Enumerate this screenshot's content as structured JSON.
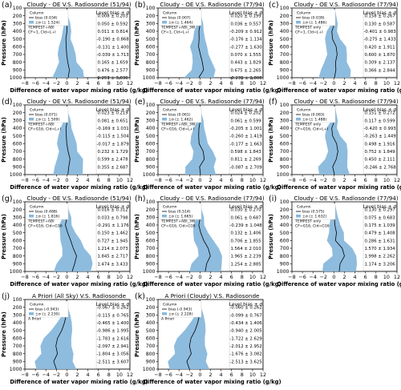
{
  "figure": {
    "common": {
      "ylabel": "Pressure (hPa)",
      "xlabel": "Difference of water vapor mixing ratio (g/kg)",
      "xticks": [
        -8,
        -6,
        -4,
        -2,
        0,
        2,
        4,
        6,
        8,
        10,
        12
      ],
      "yticks": [
        100,
        200,
        300,
        400,
        500,
        600,
        700,
        800,
        900,
        1000
      ],
      "xlim": [
        -8,
        12
      ],
      "ylim": [
        1000,
        100
      ],
      "legend_title": "Column",
      "table_header": "Level bias ± σ",
      "colors": {
        "fill": "#88b8dc",
        "line": "#000000"
      }
    }
  },
  "chart_data": [
    {
      "panel": "(a)",
      "type": "area",
      "title": "Cloudy - OE V.S. Radiosonde (51/94)",
      "legend": {
        "bias": "bias (0.034)",
        "sigma": "±σ (± 1.524)"
      },
      "annotation": [
        "TEMPEST+ABI",
        "CF=1, Cld=L+I"
      ],
      "pressure": [
        100,
        200,
        300,
        400,
        500,
        600,
        700,
        800,
        900,
        1000
      ],
      "bias": [
        0.006,
        0.008,
        0.05,
        0.011,
        -0.19,
        -0.131,
        -0.039,
        0.165,
        0.476,
        0.257
      ],
      "sigma": [
        0.05,
        0.203,
        0.592,
        0.814,
        0.868,
        1.4,
        1.713,
        1.659,
        2.577,
        3.036
      ],
      "table": [
        "0.008 ± 0.203",
        "0.050 ± 0.592",
        "0.011 ± 0.814",
        "-0.190 ± 0.868",
        "-0.131 ± 1.400",
        "-0.039 ± 1.713",
        "0.165 ± 1.659",
        "0.476 ± 2.577",
        "0.257 ± 3.036"
      ]
    },
    {
      "panel": "(b)",
      "type": "area",
      "title": "Cloudy - OE V.S. Radiosonde (77/94)",
      "legend": {
        "bias": "bias (0.007)",
        "sigma": "±σ (± 1.464)"
      },
      "annotation": [
        "TEMPEST+ABI_3W",
        "CF=1, Cld=L+I"
      ],
      "pressure": [
        100,
        200,
        300,
        400,
        500,
        600,
        700,
        800,
        900,
        1000
      ],
      "bias": [
        0.01,
        0.02,
        0.036,
        -0.209,
        -0.176,
        -0.277,
        0.07,
        0.443,
        0.675,
        -0.235
      ],
      "sigma": [
        0.05,
        0.199,
        0.557,
        0.912,
        1.134,
        1.63,
        1.555,
        1.829,
        2.265,
        2.808
      ],
      "table": [
        "0.020 ± 0.199",
        "0.036 ± 0.557",
        "-0.209 ± 0.912",
        "-0.176 ± 1.134",
        "-0.277 ± 1.630",
        "0.070 ± 1.555",
        "0.443 ± 1.829",
        "0.675 ± 2.265",
        "-0.235 ± 2.808"
      ]
    },
    {
      "panel": "(c)",
      "type": "area",
      "title": "Cloudy - OE V.S. Radiosonde (77/94)",
      "legend": {
        "bias": "bias (0.039)",
        "sigma": "±σ (± 1.486)"
      },
      "annotation": [
        "TEMPEST only",
        "CF=1, Cld=L+I"
      ],
      "pressure": [
        100,
        200,
        300,
        400,
        500,
        600,
        700,
        800,
        900,
        1000
      ],
      "bias": [
        0.1,
        0.158,
        0.13,
        -0.401,
        -0.275,
        0.42,
        0.6,
        0.309,
        0.366,
        0.1
      ],
      "sigma": [
        0.08,
        0.267,
        0.587,
        0.983,
        1.433,
        1.911,
        1.87,
        2.137,
        2.844,
        3.0
      ],
      "table": [
        "0.158 ± 0.267",
        "0.130 ± 0.587",
        "-0.401 ± 0.983",
        "-0.275 ± 1.433",
        "0.420 ± 1.911",
        "0.600 ± 1.870",
        "0.309 ± 2.137",
        "0.366 ± 2.844"
      ]
    },
    {
      "panel": "(d)",
      "type": "area",
      "title": "Cloudy - OE V.S. Radiosonde (51/94)",
      "legend": {
        "bias": "bias (0.071)",
        "sigma": "±σ (± 1.509)"
      },
      "annotation": [
        "TEMPEST+ABI",
        "CF=G16, Cld=L+I"
      ],
      "pressure": [
        100,
        200,
        300,
        400,
        500,
        600,
        700,
        800,
        900,
        1000
      ],
      "bias": [
        0.01,
        0.023,
        0.081,
        -0.169,
        -0.115,
        -0.017,
        0.232,
        0.599,
        0.355,
        0.2
      ],
      "sigma": [
        0.05,
        0.219,
        0.651,
        1.031,
        1.504,
        1.879,
        1.729,
        2.478,
        2.687,
        2.8
      ],
      "table": [
        "0.023 ± 0.219",
        "0.081 ± 0.651",
        "-0.169 ± 1.031",
        "-0.115 ± 1.504",
        "-0.017 ± 1.879",
        "0.232 ± 1.729",
        "0.599 ± 2.478",
        "0.355 ± 2.687"
      ]
    },
    {
      "panel": "(e)",
      "type": "area",
      "title": "Cloudy - OE V.S. Radiosonde (77/94)",
      "legend": {
        "bias": "bias (0.061)",
        "sigma": "±σ (± 1.462)"
      },
      "annotation": [
        "TEMPEST+ABI_3W",
        "CF=G16, Cld=L+I"
      ],
      "pressure": [
        100,
        200,
        300,
        400,
        500,
        600,
        700,
        800,
        900,
        1000
      ],
      "bias": [
        0.01,
        0.024,
        0.061,
        -0.205,
        -0.26,
        -0.177,
        0.598,
        0.811,
        -0.087,
        0.1
      ],
      "sigma": [
        0.05,
        0.202,
        0.599,
        1.001,
        1.419,
        1.663,
        1.843,
        2.269,
        2.709,
        2.9
      ],
      "table": [
        "0.024 ± 0.202",
        "0.061 ± 0.599",
        "-0.205 ± 1.001",
        "-0.260 ± 1.419",
        "-0.177 ± 1.663",
        "0.598 ± 1.843",
        "0.811 ± 2.269",
        "-0.087 ± 2.709"
      ]
    },
    {
      "panel": "(f)",
      "type": "area",
      "title": "Cloudy - OE V.S. Radiosonde (77/94)",
      "legend": {
        "bias": "bias (0.083)",
        "sigma": "±σ (± 1.488)"
      },
      "annotation": [
        "TEMPEST only",
        "CF=G16, Cld=L+I"
      ],
      "pressure": [
        100,
        200,
        300,
        400,
        500,
        600,
        700,
        800,
        900,
        1000
      ],
      "bias": [
        0.1,
        0.151,
        0.117,
        -0.42,
        -0.263,
        0.498,
        0.752,
        0.45,
        -0.246,
        0.1
      ],
      "sigma": [
        0.08,
        0.272,
        0.599,
        0.993,
        1.449,
        1.916,
        1.849,
        2.111,
        2.768,
        2.9
      ],
      "table": [
        "0.151 ± 0.272",
        "0.117 ± 0.599",
        "-0.420 ± 0.993",
        "-0.263 ± 1.449",
        "0.498 ± 1.916",
        "0.752 ± 1.849",
        "0.450 ± 2.111",
        "-0.246 ± 2.768"
      ]
    },
    {
      "panel": "(g)",
      "type": "area",
      "title": "Cloudy - OE V.S. Radiosonde (51/94)",
      "legend": {
        "bias": "bias (0.488)",
        "sigma": "±σ (± 1.816)"
      },
      "annotation": [
        "TEMPEST+ABI",
        "CF=G16, Cld=G16"
      ],
      "pressure": [
        100,
        200,
        300,
        400,
        500,
        600,
        700,
        800,
        900,
        1000
      ],
      "bias": [
        0.01,
        0.016,
        0.033,
        -0.291,
        0.15,
        0.727,
        1.214,
        1.845,
        1.474,
        1.0
      ],
      "sigma": [
        0.05,
        0.312,
        0.798,
        1.176,
        1.462,
        1.945,
        2.073,
        2.717,
        3.433,
        3.5
      ],
      "table": [
        "0.016 ± 0.312",
        "0.033 ± 0.798",
        "-0.291 ± 1.176",
        "0.150 ± 1.462",
        "0.727 ± 1.945",
        "1.214 ± 2.073",
        "1.845 ± 2.717",
        "1.474 ± 3.433"
      ]
    },
    {
      "panel": "(h)",
      "type": "area",
      "title": "Cloudy - OE V.S. Radiosonde (77/94)",
      "legend": {
        "bias": "bias (0.514)",
        "sigma": "±σ (± 1.665)"
      },
      "annotation": [
        "TEMPEST+ABI_3W",
        "CF=G16, Cld=G16"
      ],
      "pressure": [
        100,
        200,
        300,
        400,
        500,
        600,
        700,
        800,
        900,
        1000
      ],
      "bias": [
        0.01,
        0.03,
        0.061,
        -0.239,
        0.132,
        0.706,
        1.564,
        1.965,
        1.254,
        1.0
      ],
      "sigma": [
        0.05,
        0.27,
        0.687,
        1.048,
        1.406,
        1.855,
        2.01,
        2.239,
        2.885,
        3.0
      ],
      "table": [
        "0.030 ± 0.270",
        "0.061 ± 0.687",
        "-0.239 ± 1.048",
        "0.132 ± 1.406",
        "0.706 ± 1.855",
        "1.564 ± 2.010",
        "1.965 ± 2.239",
        "1.254 ± 2.885"
      ]
    },
    {
      "panel": "(i)",
      "type": "area",
      "title": "Cloudy - OE V.S. Radiosonde (77/94)",
      "legend": {
        "bias": "bias (0.575)",
        "sigma": "±σ (± 1.632)"
      },
      "annotation": [
        "TEMPEST only",
        "CF=G16, Cld=G16"
      ],
      "pressure": [
        100,
        200,
        300,
        400,
        500,
        600,
        700,
        800,
        900,
        1000
      ],
      "bias": [
        0.1,
        0.13,
        0.075,
        0.175,
        0.479,
        0.286,
        1.57,
        1.998,
        1.174,
        1.0
      ],
      "sigma": [
        0.08,
        0.297,
        0.683,
        1.039,
        1.408,
        1.631,
        1.934,
        2.262,
        3.206,
        3.2
      ],
      "table": [
        "0.130 ± 0.297",
        "0.075 ± 0.683",
        "0.175 ± 1.039",
        "0.479 ± 1.408",
        "0.286 ± 1.631",
        "1.570 ± 1.934",
        "1.998 ± 2.262",
        "1.174 ± 3.206"
      ]
    },
    {
      "panel": "(j)",
      "type": "area",
      "title": "A Priori (All Sky) V.S. Radiosonde",
      "legend": {
        "bias": "bias (-0.943)",
        "sigma": "±σ (± 2.230)"
      },
      "annotation": [
        "A Priori"
      ],
      "pressure": [
        100,
        200,
        300,
        400,
        500,
        600,
        700,
        800,
        900,
        1000
      ],
      "bias": [
        -0.03,
        -0.067,
        -0.115,
        -0.465,
        -0.986,
        -1.783,
        -2.097,
        -1.804,
        -2.511,
        -2.0
      ],
      "sigma": [
        0.1,
        0.262,
        0.765,
        1.4,
        1.995,
        2.616,
        2.941,
        3.056,
        3.607,
        3.8
      ],
      "table": [
        "-0.067 ± 0.262",
        "-0.115 ± 0.765",
        "-0.465 ± 1.400",
        "-0.986 ± 1.995",
        "-1.783 ± 2.616",
        "-2.097 ± 2.941",
        "-1.804 ± 3.056",
        "-2.511 ± 3.607"
      ]
    },
    {
      "panel": "(k)",
      "type": "area",
      "title": "A Priori (Cloudy) V.S. Radiosonde",
      "legend": {
        "bias": "bias (-0.943)",
        "sigma": "±σ (± 2.228)"
      },
      "annotation": [
        "A Priori"
      ],
      "pressure": [
        100,
        200,
        300,
        400,
        500,
        600,
        700,
        800,
        900,
        1000
      ],
      "bias": [
        -0.03,
        -0.06,
        -0.099,
        -0.434,
        -0.94,
        -1.722,
        -2.012,
        -1.676,
        -2.513,
        -2.0
      ],
      "sigma": [
        0.1,
        0.262,
        0.767,
        1.406,
        2.005,
        2.629,
        2.952,
        3.082,
        3.625,
        3.8
      ],
      "table": [
        "-0.060 ± 0.262",
        "-0.099 ± 0.767",
        "-0.434 ± 1.406",
        "-0.940 ± 2.005",
        "-1.722 ± 2.629",
        "-2.012 ± 2.952",
        "-1.676 ± 3.082",
        "-2.513 ± 3.625"
      ]
    }
  ]
}
